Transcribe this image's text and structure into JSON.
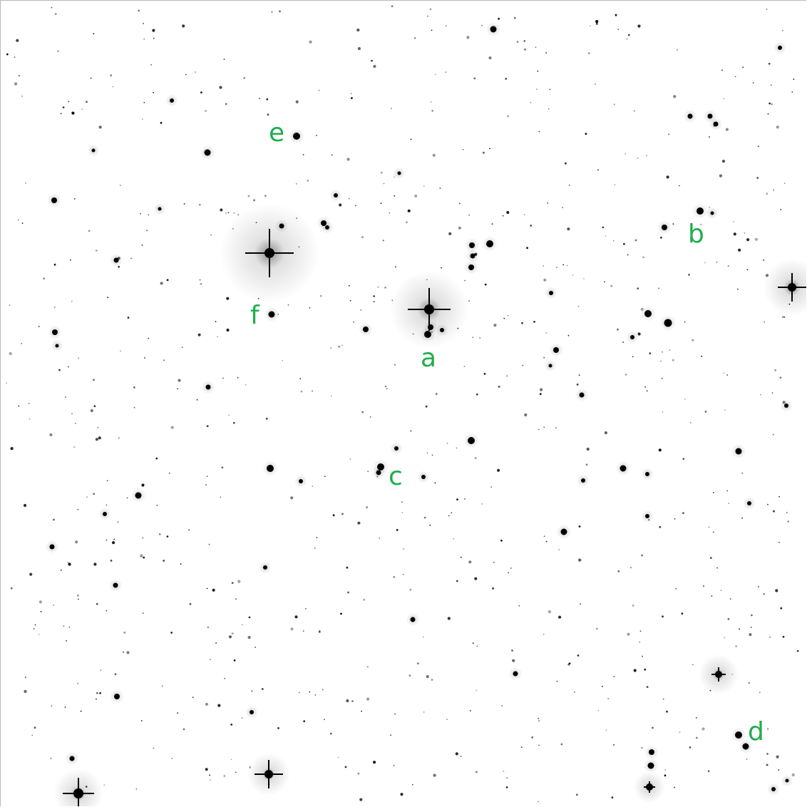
{
  "image": {
    "kind": "inverted star field",
    "background_color": "#ffffff",
    "star_color": "#000000",
    "label_color": "#1fae4b"
  },
  "labels": [
    "e",
    "b",
    "f",
    "a",
    "c",
    "d"
  ]
}
